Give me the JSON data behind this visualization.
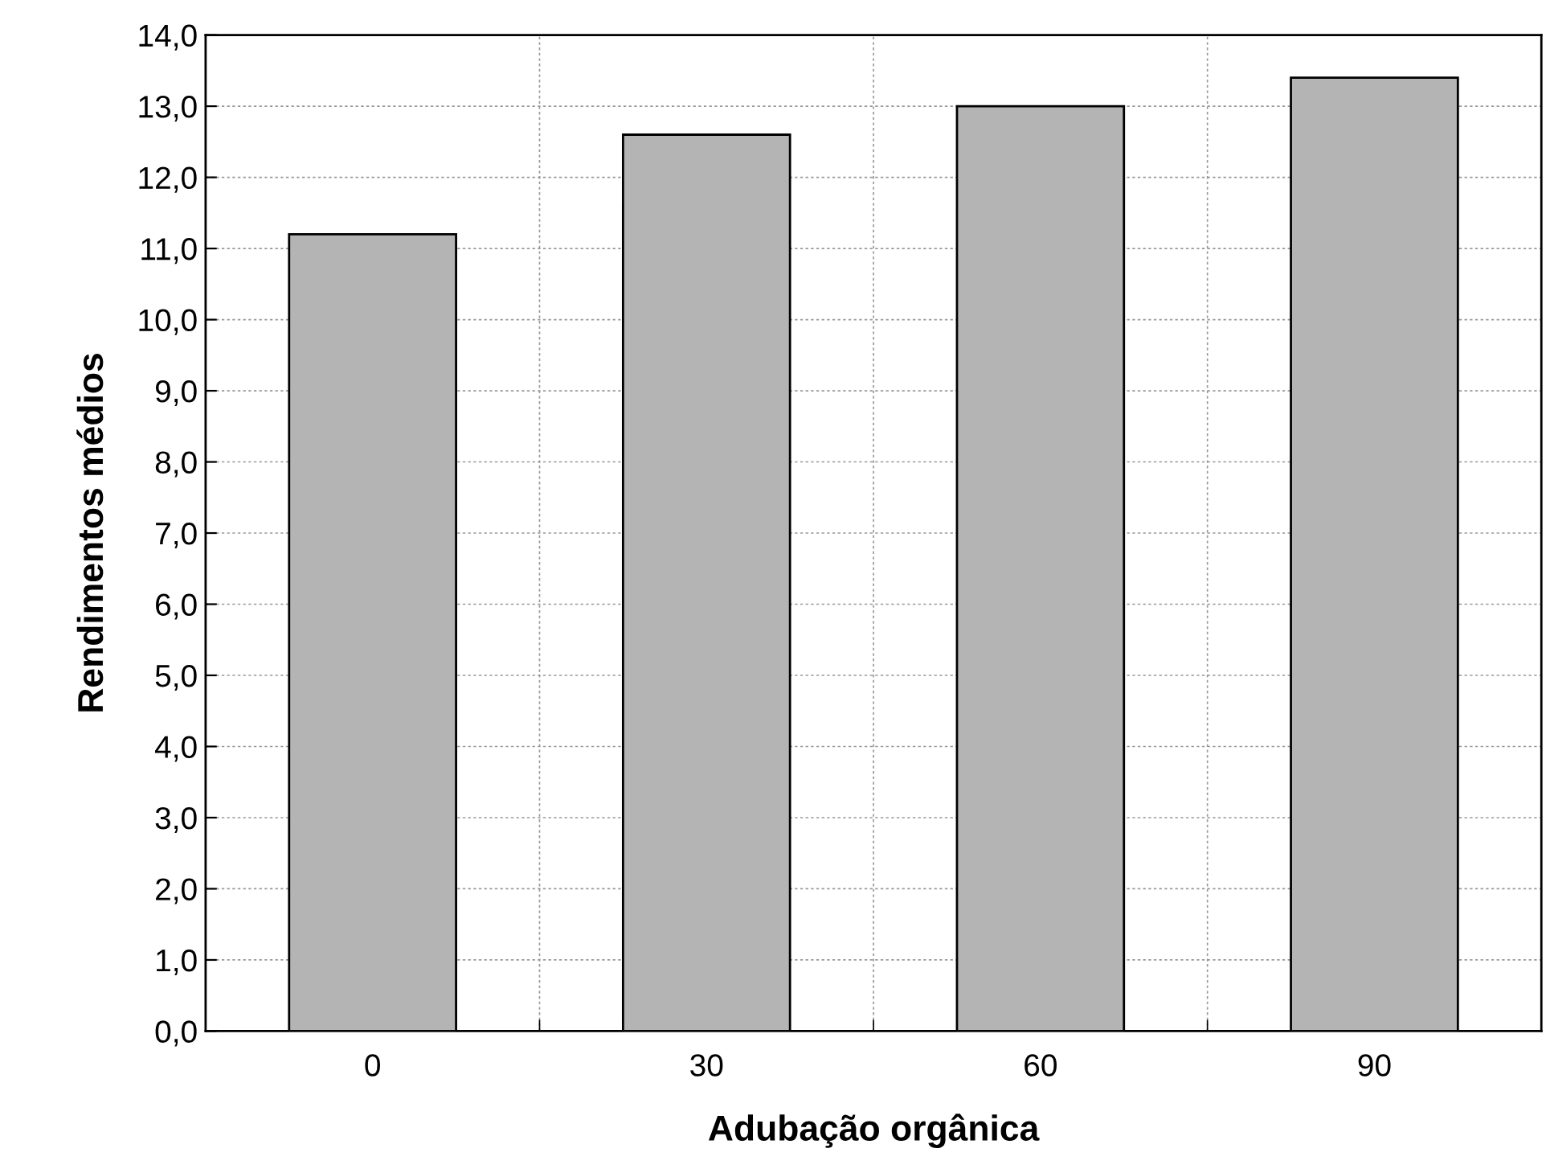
{
  "chart_data": {
    "type": "bar",
    "xlabel": "Adubação orgânica",
    "ylabel": "Rendimentos médios",
    "categories": [
      "0",
      "30",
      "60",
      "90"
    ],
    "values": [
      11.2,
      12.6,
      13.0,
      13.4
    ],
    "color": "#b4b4b4",
    "ylim": [
      0,
      14
    ],
    "yticks": [
      {
        "value": 0,
        "label": "0,0"
      },
      {
        "value": 1,
        "label": "1,0"
      },
      {
        "value": 2,
        "label": "2,0"
      },
      {
        "value": 3,
        "label": "3,0"
      },
      {
        "value": 4,
        "label": "4,0"
      },
      {
        "value": 5,
        "label": "5,0"
      },
      {
        "value": 6,
        "label": "6,0"
      },
      {
        "value": 7,
        "label": "7,0"
      },
      {
        "value": 8,
        "label": "8,0"
      },
      {
        "value": 9,
        "label": "9,0"
      },
      {
        "value": 10,
        "label": "10,0"
      },
      {
        "value": 11,
        "label": "11,0"
      },
      {
        "value": 12,
        "label": "12,0"
      },
      {
        "value": 13,
        "label": "13,0"
      },
      {
        "value": 14,
        "label": "14,0"
      }
    ],
    "grid": true
  }
}
